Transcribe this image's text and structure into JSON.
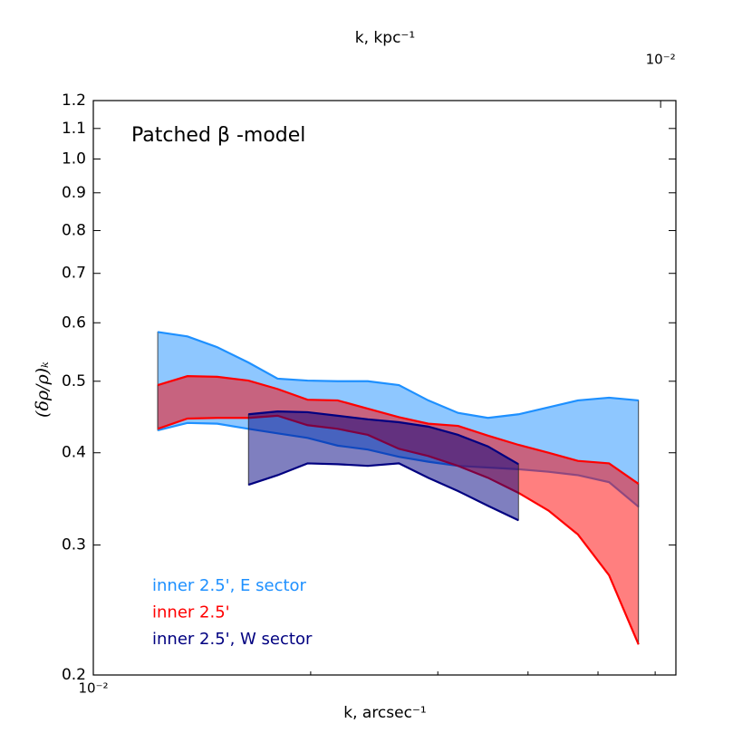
{
  "chart_data": {
    "type": "band",
    "title": "Patched β -model",
    "xlabel": "k, arcsec⁻¹",
    "x2label": "k, kpc⁻¹",
    "ylabel": "(δρ/ρ)ₖ",
    "xscale": "log",
    "yscale": "log",
    "xlim": [
      0.01,
      0.0641
    ],
    "xticks": [
      {
        "value": 0.01,
        "label": "10⁻²"
      }
    ],
    "xticks_minor": [
      0.02,
      0.03,
      0.04,
      0.05,
      0.06
    ],
    "x2lim": [
      0.00163,
      0.0105
    ],
    "x2ticks": [
      {
        "value": 0.01,
        "label": "10⁻²"
      }
    ],
    "ylim": [
      0.2,
      1.2
    ],
    "yticks": [
      0.2,
      0.3,
      0.4,
      0.5,
      0.6,
      0.7,
      0.8,
      0.9,
      {
        "value": 1,
        "label": "1.0"
      },
      1.1,
      1.2
    ],
    "legend": "lower left",
    "series": [
      {
        "name": "inner 2.5', E sector",
        "color": "#1e90ff",
        "x": [
          0.01228,
          0.0135,
          0.01485,
          0.0164,
          0.018,
          0.0198,
          0.0218,
          0.024,
          0.0265,
          0.0291,
          0.032,
          0.0352,
          0.0388,
          0.0427,
          0.0469,
          0.0518,
          0.0569
        ],
        "upper": [
          0.583,
          0.575,
          0.556,
          0.53,
          0.504,
          0.501,
          0.5,
          0.5,
          0.494,
          0.471,
          0.453,
          0.446,
          0.451,
          0.461,
          0.471,
          0.475,
          0.471
        ],
        "lower": [
          0.429,
          0.439,
          0.438,
          0.431,
          0.425,
          0.419,
          0.409,
          0.404,
          0.395,
          0.389,
          0.384,
          0.382,
          0.38,
          0.377,
          0.373,
          0.365,
          0.338
        ]
      },
      {
        "name": "inner 2.5'",
        "color": "#ff0000",
        "x": [
          0.01228,
          0.0135,
          0.01485,
          0.0164,
          0.018,
          0.0198,
          0.0218,
          0.024,
          0.0265,
          0.0291,
          0.032,
          0.0352,
          0.0388,
          0.0427,
          0.0469,
          0.0518,
          0.0569
        ],
        "upper": [
          0.494,
          0.508,
          0.507,
          0.501,
          0.488,
          0.472,
          0.471,
          0.459,
          0.447,
          0.438,
          0.435,
          0.422,
          0.41,
          0.4,
          0.39,
          0.387,
          0.363
        ],
        "lower": [
          0.431,
          0.445,
          0.446,
          0.446,
          0.449,
          0.436,
          0.431,
          0.423,
          0.405,
          0.396,
          0.384,
          0.37,
          0.353,
          0.334,
          0.31,
          0.273,
          0.22
        ]
      },
      {
        "name": "inner 2.5', W sector",
        "color": "#000080",
        "x": [
          0.0164,
          0.018,
          0.0198,
          0.0218,
          0.024,
          0.0265,
          0.0291,
          0.032,
          0.0352,
          0.0388
        ],
        "upper": [
          0.451,
          0.455,
          0.454,
          0.449,
          0.444,
          0.44,
          0.434,
          0.423,
          0.408,
          0.386
        ],
        "lower": [
          0.362,
          0.373,
          0.387,
          0.386,
          0.384,
          0.387,
          0.37,
          0.355,
          0.339,
          0.324
        ]
      }
    ]
  }
}
